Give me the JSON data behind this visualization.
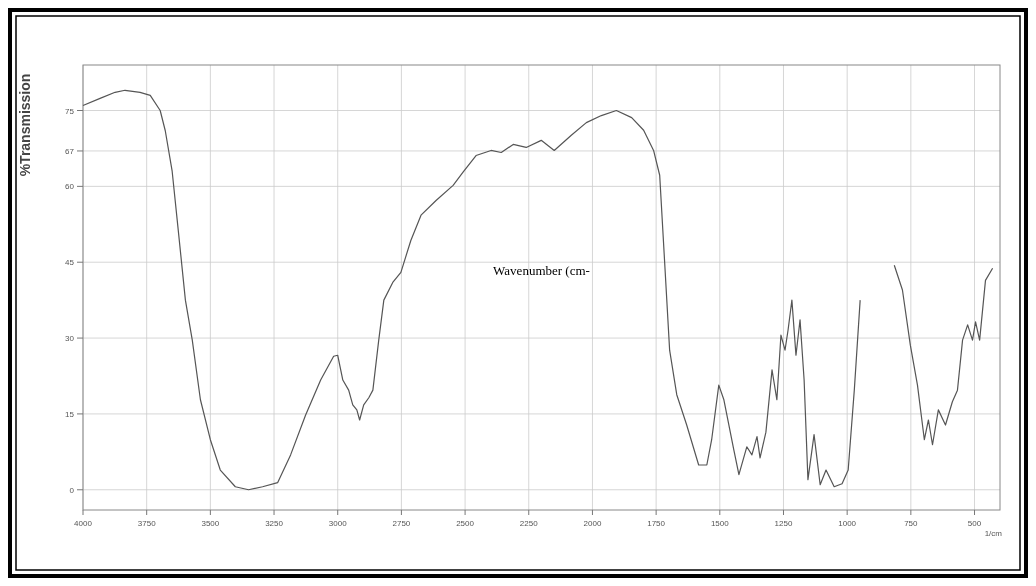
{
  "chart_data": {
    "type": "line",
    "ylabel": "%Transmission",
    "xlabel": "1/cm",
    "annotations": [
      "Wavenumber (cm-"
    ],
    "xlim": [
      4000,
      400
    ],
    "xticks": [
      4000,
      3750,
      3500,
      3250,
      3000,
      2750,
      2500,
      2250,
      2000,
      1750,
      1500,
      1250,
      1000,
      750,
      500
    ],
    "ylim": [
      -4,
      84
    ],
    "yticks": [
      0,
      15,
      30,
      45,
      60,
      67,
      75
    ],
    "grid": true,
    "series": [
      {
        "color": "#555555",
        "x": [
          4000,
          3933,
          3874,
          3835,
          3776,
          3736,
          3697,
          3677,
          3650,
          3626,
          3598,
          3571,
          3539,
          3500,
          3461,
          3402,
          3350,
          3295,
          3236,
          3185,
          3126,
          3067,
          3016,
          3000,
          2980,
          2957,
          2941,
          2925,
          2914,
          2898,
          2878,
          2862,
          2839,
          2819,
          2784,
          2752,
          2713,
          2673,
          2614,
          2547,
          2508,
          2457,
          2398,
          2358,
          2311,
          2260,
          2201,
          2150,
          2083,
          2024,
          1965,
          1906,
          1846,
          1799,
          1760,
          1736,
          1717,
          1697,
          1669,
          1630,
          1583,
          1551,
          1532,
          1504,
          1484,
          1445,
          1425,
          1394,
          1374,
          1354,
          1342,
          1319,
          1295,
          1276,
          1260,
          1244,
          1232,
          1217,
          1201,
          1185,
          1169,
          1154,
          1130,
          1106,
          1083,
          1051,
          1020,
          996,
          972,
          949,
          880,
          815,
          783,
          752,
          724,
          697,
          681,
          665,
          642,
          614,
          587,
          567,
          547,
          527,
          508,
          496,
          480,
          457,
          429
        ],
        "values": [
          76,
          77.4,
          78.6,
          79,
          78.6,
          78,
          75,
          71,
          63,
          51.3,
          37.5,
          29.6,
          17.8,
          9.9,
          3.9,
          0.6,
          0,
          0.6,
          1.4,
          6.9,
          14.8,
          21.7,
          26.4,
          26.6,
          21.7,
          19.7,
          16.8,
          15.8,
          13.8,
          16.8,
          18.2,
          19.7,
          29.6,
          37.5,
          41,
          43,
          49.3,
          54.3,
          57.2,
          60.2,
          62.8,
          66.1,
          67.1,
          66.7,
          68.3,
          67.7,
          69.1,
          67.1,
          70.1,
          72.6,
          74,
          75,
          73.6,
          71.1,
          67.1,
          62.2,
          45.4,
          27.6,
          18.8,
          12.8,
          4.9,
          4.9,
          9.9,
          20.7,
          17.8,
          7.9,
          3,
          8.5,
          6.9,
          10.5,
          6.3,
          11.4,
          23.7,
          17.8,
          30.6,
          27.6,
          31.6,
          37.5,
          26.6,
          33.6,
          21.7,
          2,
          10.9,
          1,
          3.9,
          0.6,
          1.2,
          3.9,
          19.7,
          37.5,
          null,
          44.4,
          39.5,
          28.6,
          20.7,
          9.9,
          13.8,
          8.9,
          15.8,
          12.8,
          17.4,
          19.7,
          29.6,
          32.6,
          29.6,
          33.2,
          29.6,
          41.4,
          43.8
        ]
      }
    ]
  }
}
